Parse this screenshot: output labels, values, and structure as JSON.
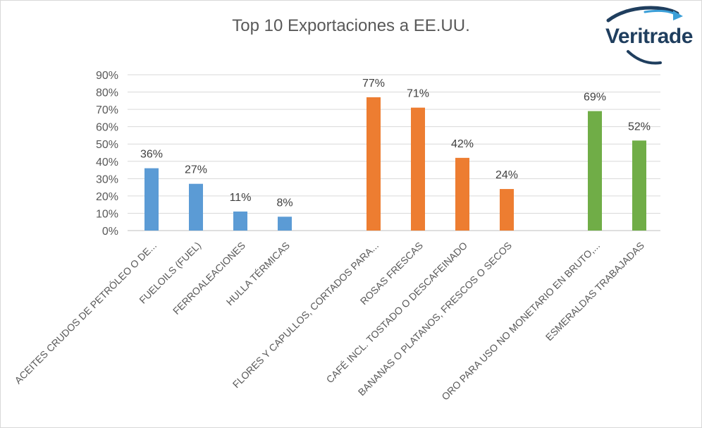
{
  "chart_data": {
    "type": "bar",
    "title": "Top 10 Exportaciones a EE.UU.",
    "xlabel": "",
    "ylabel": "",
    "ylim": [
      0,
      90
    ],
    "yticks": [
      "0%",
      "10%",
      "20%",
      "30%",
      "40%",
      "50%",
      "60%",
      "70%",
      "80%",
      "90%"
    ],
    "grid": true,
    "legend": "none",
    "categories": [
      "ACEITES CRUDOS DE PETRÓLEO O DE...",
      "FUELOILS (FUEL)",
      "FERROALEACIONES",
      "HULLA TÉRMICAS",
      "FLORES Y CAPULLOS, CORTADOS PARA...",
      "ROSAS FRESCAS",
      "CAFÉ INCL. TOSTADO O DESCAFEINADO",
      "BANANAS O PLATANOS, FRESCOS O SECOS",
      "ORO PARA USO NO MONETARIO EN BRUTO,...",
      "ESMERALDAS TRABAJADAS"
    ],
    "values": [
      36,
      27,
      11,
      8,
      77,
      71,
      42,
      24,
      69,
      52
    ],
    "value_labels": [
      "36%",
      "27%",
      "11%",
      "8%",
      "77%",
      "71%",
      "42%",
      "24%",
      "69%",
      "52%"
    ],
    "bar_colors": [
      "#5b9bd5",
      "#5b9bd5",
      "#5b9bd5",
      "#5b9bd5",
      "#ed7d31",
      "#ed7d31",
      "#ed7d31",
      "#ed7d31",
      "#70ad47",
      "#70ad47"
    ]
  },
  "logo": {
    "text": "Veritrade",
    "color": "#1f3e5e",
    "accent": "#3b9fd8"
  }
}
